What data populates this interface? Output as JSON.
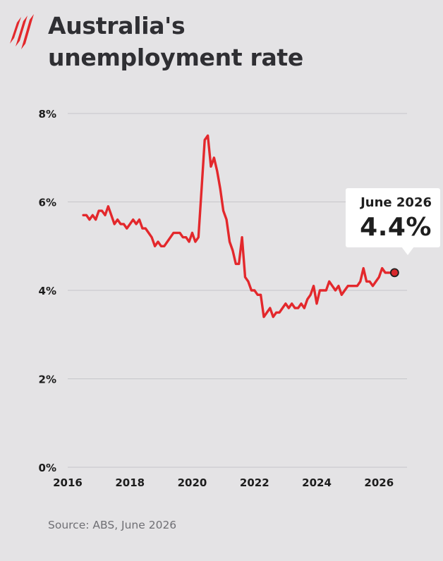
{
  "header": {
    "title_line1": "Australia's",
    "title_line2": "unemployment rate"
  },
  "colors": {
    "background": "#e4e3e5",
    "line": "#e3282c",
    "logo": "#e3282c",
    "text": "#2f2f33",
    "source": "#6f6f74"
  },
  "icons": {
    "logo": "sbs-logo-icon"
  },
  "callout": {
    "date": "June 2026",
    "value": "4.4%"
  },
  "source": "Source: ABS, June 2026",
  "chart_data": {
    "type": "line",
    "title": "Australia's unemployment rate",
    "xlabel": "",
    "ylabel": "",
    "xlim": [
      2016.0,
      2026.9
    ],
    "ylim": [
      0,
      8
    ],
    "grid": true,
    "x_ticks": [
      2016,
      2018,
      2020,
      2022,
      2024,
      2026
    ],
    "x_tick_labels": [
      "2016",
      "2018",
      "2020",
      "2022",
      "2024",
      "2026"
    ],
    "y_ticks": [
      0,
      2,
      4,
      6,
      8
    ],
    "y_tick_labels": [
      "0%",
      "2%",
      "4%",
      "6%",
      "8%"
    ],
    "series": [
      {
        "x": [
          2016.5,
          2016.6,
          2016.7,
          2016.8,
          2016.9,
          2017.0,
          2017.1,
          2017.2,
          2017.3,
          2017.4,
          2017.5,
          2017.6,
          2017.7,
          2017.8,
          2017.9,
          2018.0,
          2018.1,
          2018.2,
          2018.3,
          2018.4,
          2018.5,
          2018.6,
          2018.7,
          2018.8,
          2018.9,
          2019.0,
          2019.1,
          2019.2,
          2019.3,
          2019.4,
          2019.5,
          2019.6,
          2019.7,
          2019.8,
          2019.9,
          2020.0,
          2020.1,
          2020.2,
          2020.3,
          2020.4,
          2020.5,
          2020.6,
          2020.7,
          2020.8,
          2020.9,
          2021.0,
          2021.1,
          2021.2,
          2021.3,
          2021.4,
          2021.5,
          2021.6,
          2021.7,
          2021.8,
          2021.9,
          2022.0,
          2022.1,
          2022.2,
          2022.3,
          2022.4,
          2022.5,
          2022.6,
          2022.7,
          2022.8,
          2022.9,
          2023.0,
          2023.1,
          2023.2,
          2023.3,
          2023.4,
          2023.5,
          2023.6,
          2023.7,
          2023.8,
          2023.9,
          2024.0,
          2024.1,
          2024.2,
          2024.3,
          2024.4,
          2024.5,
          2024.6,
          2024.7,
          2024.8,
          2024.9,
          2025.0,
          2025.1,
          2025.2,
          2025.3,
          2025.4,
          2025.5,
          2025.6,
          2025.7,
          2025.8,
          2025.9,
          2026.0,
          2026.1,
          2026.2,
          2026.3,
          2026.4,
          2026.5
        ],
        "y": [
          5.7,
          5.7,
          5.6,
          5.7,
          5.6,
          5.8,
          5.8,
          5.7,
          5.9,
          5.7,
          5.5,
          5.6,
          5.5,
          5.5,
          5.4,
          5.5,
          5.6,
          5.5,
          5.6,
          5.4,
          5.4,
          5.3,
          5.2,
          5.0,
          5.1,
          5.0,
          5.0,
          5.1,
          5.2,
          5.3,
          5.3,
          5.3,
          5.2,
          5.2,
          5.1,
          5.3,
          5.1,
          5.2,
          6.3,
          7.4,
          7.5,
          6.8,
          7.0,
          6.7,
          6.3,
          5.8,
          5.6,
          5.1,
          4.9,
          4.6,
          4.6,
          5.2,
          4.3,
          4.2,
          4.0,
          4.0,
          3.9,
          3.9,
          3.4,
          3.5,
          3.6,
          3.4,
          3.5,
          3.5,
          3.6,
          3.7,
          3.6,
          3.7,
          3.6,
          3.6,
          3.7,
          3.6,
          3.8,
          3.9,
          4.1,
          3.7,
          4.0,
          4.0,
          4.0,
          4.2,
          4.1,
          4.0,
          4.1,
          3.9,
          4.0,
          4.1,
          4.1,
          4.1,
          4.1,
          4.2,
          4.5,
          4.2,
          4.2,
          4.1,
          4.2,
          4.3,
          4.5,
          4.4,
          4.4,
          4.4,
          4.4
        ]
      }
    ],
    "highlight_point": {
      "x": 2026.5,
      "y": 4.4
    }
  }
}
